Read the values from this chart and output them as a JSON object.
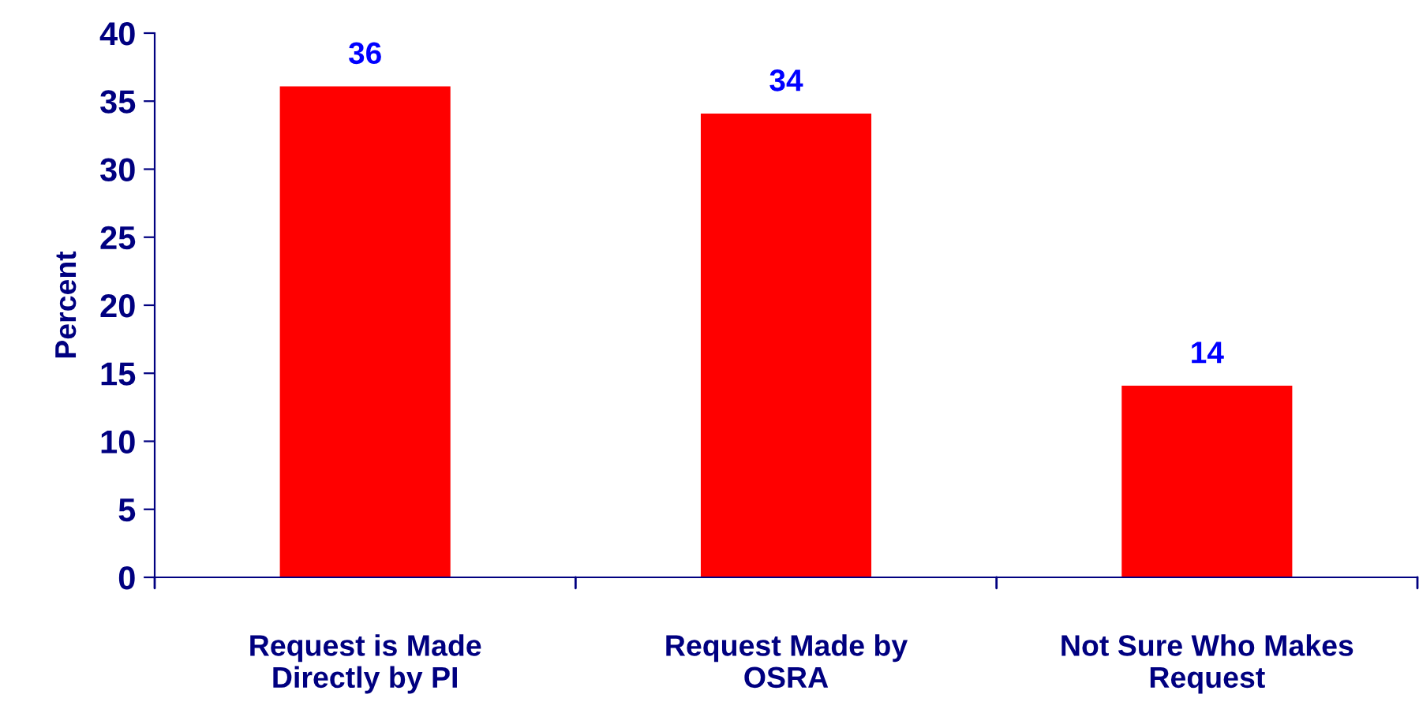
{
  "chart_data": {
    "type": "bar",
    "ylabel": "Percent",
    "categories": [
      "Request is Made\nDirectly by PI",
      "Request Made by\nOSRA",
      "Not Sure Who Makes\nRequest"
    ],
    "values": [
      36,
      34,
      14
    ],
    "color": "#ff0000",
    "ylim": [
      0,
      40
    ],
    "yticks": [
      0,
      5,
      10,
      15,
      20,
      25,
      30,
      35,
      40
    ],
    "data_labels": true,
    "grid": false,
    "legend": false
  }
}
